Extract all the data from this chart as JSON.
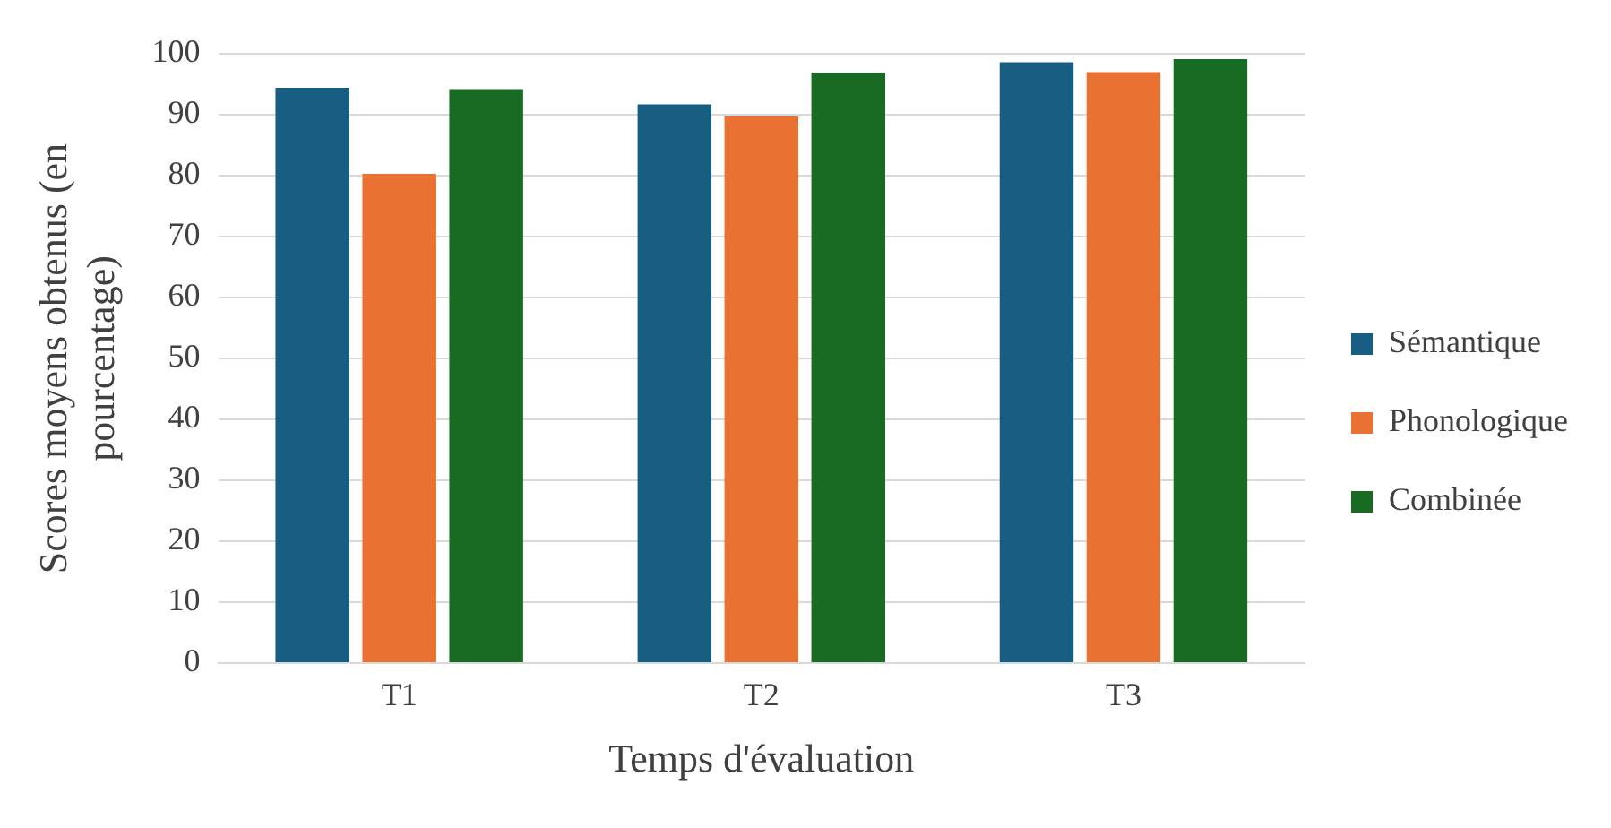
{
  "chart_data": {
    "type": "bar",
    "xlabel": "Temps d'évaluation",
    "ylabel": "Scores moyens obtenus (en pourcentage)",
    "categories": [
      "T1",
      "T2",
      "T3"
    ],
    "series": [
      {
        "name": "Sémantique",
        "color": "#175e82",
        "values": [
          94.4,
          91.7,
          98.6
        ]
      },
      {
        "name": "Phonologique",
        "color": "#e97132",
        "values": [
          80.3,
          89.7,
          97.0
        ]
      },
      {
        "name": "Combinée",
        "color": "#196b24",
        "values": [
          94.2,
          96.9,
          99.1
        ]
      }
    ],
    "ylim": [
      0,
      100
    ],
    "yticks": [
      0,
      10,
      20,
      30,
      40,
      50,
      60,
      70,
      80,
      90,
      100
    ],
    "grid": "y",
    "legend": "right"
  }
}
